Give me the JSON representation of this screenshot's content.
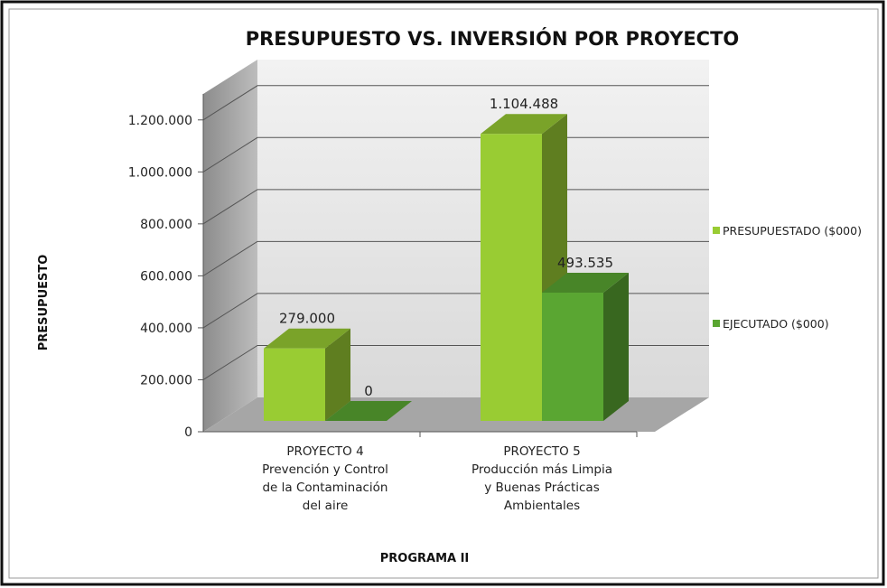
{
  "chart_data": {
    "type": "bar3d",
    "title": "PRESUPUESTO VS. INVERSIÓN POR PROYECTO",
    "xlabel": "PROGRAMA II",
    "ylabel": "PRESUPUESTO",
    "categories": [
      [
        "PROYECTO 4",
        "Prevención y Control",
        "de la Contaminación",
        "del aire"
      ],
      [
        "PROYECTO 5",
        "Producción más Limpia",
        "y Buenas Prácticas",
        "Ambientales"
      ]
    ],
    "series": [
      {
        "name": "PRESUPUESTADO ($000)",
        "color": "#99cc33",
        "values": [
          279000,
          1104488
        ],
        "value_labels": [
          "279.000",
          "1.104.488"
        ]
      },
      {
        "name": "EJECUTADO  ($000)",
        "color": "#5aa632",
        "values": [
          0,
          493535
        ],
        "value_labels": [
          "0",
          "493.535"
        ]
      }
    ],
    "ylim": [
      0,
      1300000
    ],
    "yticks": [
      0,
      {
        "value": 200000,
        "label": "200.000"
      },
      {
        "value": 400000,
        "label": "400.000"
      },
      {
        "value": 600000,
        "label": "600.000"
      },
      {
        "value": 800000,
        "label": "800.000"
      },
      {
        "value": 1000000,
        "label": "1.000.000"
      },
      {
        "value": 1200000,
        "label": "1.200.000"
      }
    ],
    "grid": true,
    "legend": "right"
  }
}
